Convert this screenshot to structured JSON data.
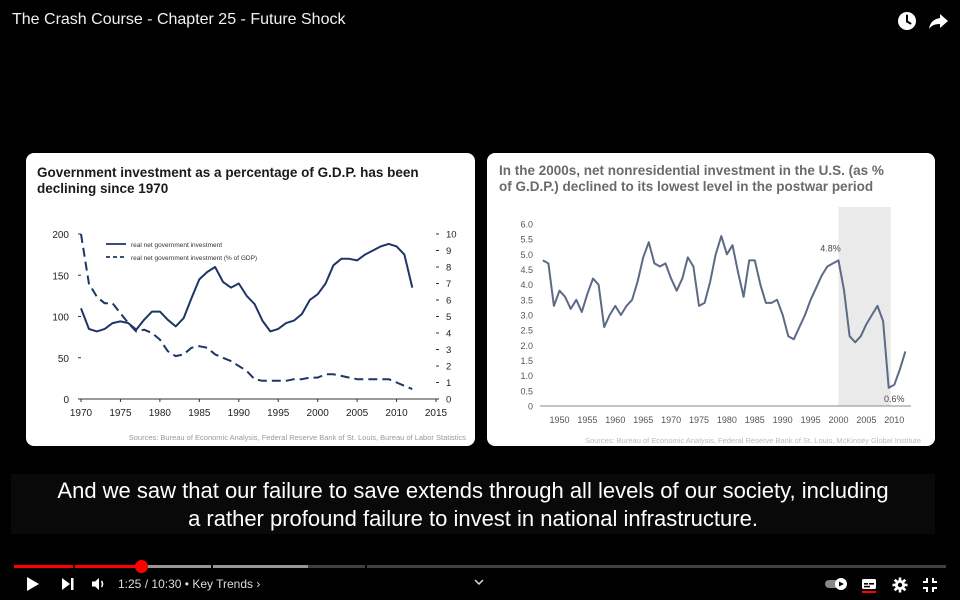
{
  "video": {
    "title": "The Crash Course - Chapter 25 - Future Shock",
    "subtitles": [
      "And we saw that our failure to save extends through all levels of our society, including",
      "a rather profound failure to invest in national infrastructure."
    ]
  },
  "player": {
    "current_time": "1:25",
    "duration": "10:30",
    "time_separator": "/",
    "chapter_label": "Key Trends",
    "chapter_separator": "•",
    "chapter_arrow": "›",
    "progress_played_fraction": 0.136,
    "progress_loaded_fraction": 0.315,
    "icons": {
      "watch_later": "clock-icon",
      "share": "share-arrow-icon",
      "play": "play-icon",
      "next": "next-icon",
      "volume": "volume-icon",
      "autoplay": "autoplay-toggle-icon",
      "subtitles": "subtitles-icon",
      "settings": "gear-icon",
      "fullscreen": "exit-fullscreen-icon",
      "chevron": "chevron-down-icon"
    }
  },
  "chart_data": [
    {
      "type": "line",
      "title": "Government investment as a percentage of G.D.P. has been declining since 1970",
      "xlabel": "",
      "ylabel": "",
      "source": "Sources: Bureau of Economic Analysis, Federal Reserve Bank of St. Louis, Bureau of Labor Statistics",
      "x_ticks": [
        1970,
        1975,
        1980,
        1985,
        1990,
        1995,
        2000,
        2005,
        2010,
        2015
      ],
      "y_left_ticks": [
        0,
        50,
        100,
        150,
        200
      ],
      "y_right_ticks": [
        0,
        1,
        2,
        3,
        4,
        5,
        6,
        7,
        8,
        9,
        10
      ],
      "ylim_left": [
        0,
        200
      ],
      "ylim_right": [
        0,
        10
      ],
      "xlim": [
        1970,
        2015
      ],
      "legend_position": "top-left",
      "series": [
        {
          "name": "real net government investment",
          "style": "solid",
          "axis": "left",
          "x": [
            1970,
            1971,
            1972,
            1973,
            1974,
            1975,
            1976,
            1977,
            1978,
            1979,
            1980,
            1981,
            1982,
            1983,
            1984,
            1985,
            1986,
            1987,
            1988,
            1989,
            1990,
            1991,
            1992,
            1993,
            1994,
            1995,
            1996,
            1997,
            1998,
            1999,
            2000,
            2001,
            2002,
            2003,
            2004,
            2005,
            2006,
            2007,
            2008,
            2009,
            2010,
            2011,
            2012
          ],
          "values": [
            110,
            85,
            82,
            85,
            92,
            94,
            92,
            84,
            96,
            106,
            106,
            96,
            88,
            98,
            122,
            145,
            154,
            160,
            142,
            135,
            140,
            125,
            115,
            95,
            82,
            85,
            92,
            95,
            103,
            120,
            127,
            140,
            162,
            170,
            170,
            168,
            175,
            180,
            185,
            188,
            185,
            175,
            135
          ]
        },
        {
          "name": "real net government investment (% of GDP)",
          "style": "dashed",
          "axis": "right",
          "x": [
            1970,
            1971,
            1972,
            1973,
            1974,
            1975,
            1976,
            1977,
            1978,
            1979,
            1980,
            1981,
            1982,
            1983,
            1984,
            1985,
            1986,
            1987,
            1988,
            1989,
            1990,
            1991,
            1992,
            1993,
            1994,
            1995,
            1996,
            1997,
            1998,
            1999,
            2000,
            2001,
            2002,
            2003,
            2004,
            2005,
            2006,
            2007,
            2008,
            2009,
            2010,
            2011,
            2012
          ],
          "values": [
            10,
            7,
            6.2,
            5.8,
            5.8,
            5.2,
            4.6,
            4.1,
            4.2,
            4.0,
            3.6,
            2.9,
            2.6,
            2.7,
            3.1,
            3.2,
            3.1,
            2.7,
            2.5,
            2.3,
            2.0,
            1.7,
            1.2,
            1.1,
            1.1,
            1.1,
            1.1,
            1.2,
            1.2,
            1.3,
            1.3,
            1.5,
            1.5,
            1.4,
            1.3,
            1.2,
            1.2,
            1.2,
            1.2,
            1.2,
            1.0,
            0.8,
            0.6
          ]
        }
      ]
    },
    {
      "type": "line",
      "title": "In the 2000s, net nonresidential investment in the U.S. (as % of G.D.P.) declined to its lowest level in the postwar period",
      "xlabel": "",
      "ylabel": "",
      "source": "Sources: Bureau of Economic Analysis, Federal Reserve Bank of St. Louis, McKinsey Global Institute",
      "x_ticks": [
        1950,
        1955,
        1960,
        1965,
        1970,
        1975,
        1980,
        1985,
        1990,
        1995,
        2000,
        2005,
        2010
      ],
      "y_ticks": [
        "0",
        "0.5",
        "1.0",
        "1.5",
        "2.0",
        "2.5",
        "3.0",
        "3.5",
        "4.0",
        "4.5",
        "5.0",
        "5.5",
        "6.0"
      ],
      "ylim": [
        0,
        6
      ],
      "xlim": [
        1946.5,
        2013
      ],
      "highlight_range": [
        2000,
        2009
      ],
      "annotations": [
        {
          "text": "4.8%",
          "x": 2000,
          "y": 4.8
        },
        {
          "text": "0.6%",
          "x": 2010,
          "y": 0.6
        }
      ],
      "series": [
        {
          "x": [
            1947,
            1948,
            1949,
            1950,
            1951,
            1952,
            1953,
            1954,
            1955,
            1956,
            1957,
            1958,
            1959,
            1960,
            1961,
            1962,
            1963,
            1964,
            1965,
            1966,
            1967,
            1968,
            1969,
            1970,
            1971,
            1972,
            1973,
            1974,
            1975,
            1976,
            1977,
            1978,
            1979,
            1980,
            1981,
            1982,
            1983,
            1984,
            1985,
            1986,
            1987,
            1988,
            1989,
            1990,
            1991,
            1992,
            1993,
            1994,
            1995,
            1996,
            1997,
            1998,
            1999,
            2000,
            2001,
            2002,
            2003,
            2004,
            2005,
            2006,
            2007,
            2008,
            2009,
            2010,
            2011,
            2012
          ],
          "values": [
            4.8,
            4.7,
            3.3,
            3.8,
            3.6,
            3.2,
            3.5,
            3.1,
            3.7,
            4.2,
            4.0,
            2.6,
            3.0,
            3.3,
            3.0,
            3.3,
            3.5,
            4.1,
            4.9,
            5.4,
            4.7,
            4.6,
            4.7,
            4.2,
            3.8,
            4.2,
            4.9,
            4.6,
            3.3,
            3.4,
            4.1,
            5.0,
            5.6,
            5.0,
            5.3,
            4.4,
            3.6,
            4.8,
            4.8,
            4.0,
            3.4,
            3.4,
            3.5,
            3.0,
            2.3,
            2.2,
            2.6,
            3.0,
            3.5,
            3.9,
            4.3,
            4.6,
            4.7,
            4.8,
            3.8,
            2.3,
            2.1,
            2.3,
            2.7,
            3.0,
            3.3,
            2.8,
            0.6,
            0.7,
            1.2,
            1.8
          ]
        }
      ]
    }
  ]
}
